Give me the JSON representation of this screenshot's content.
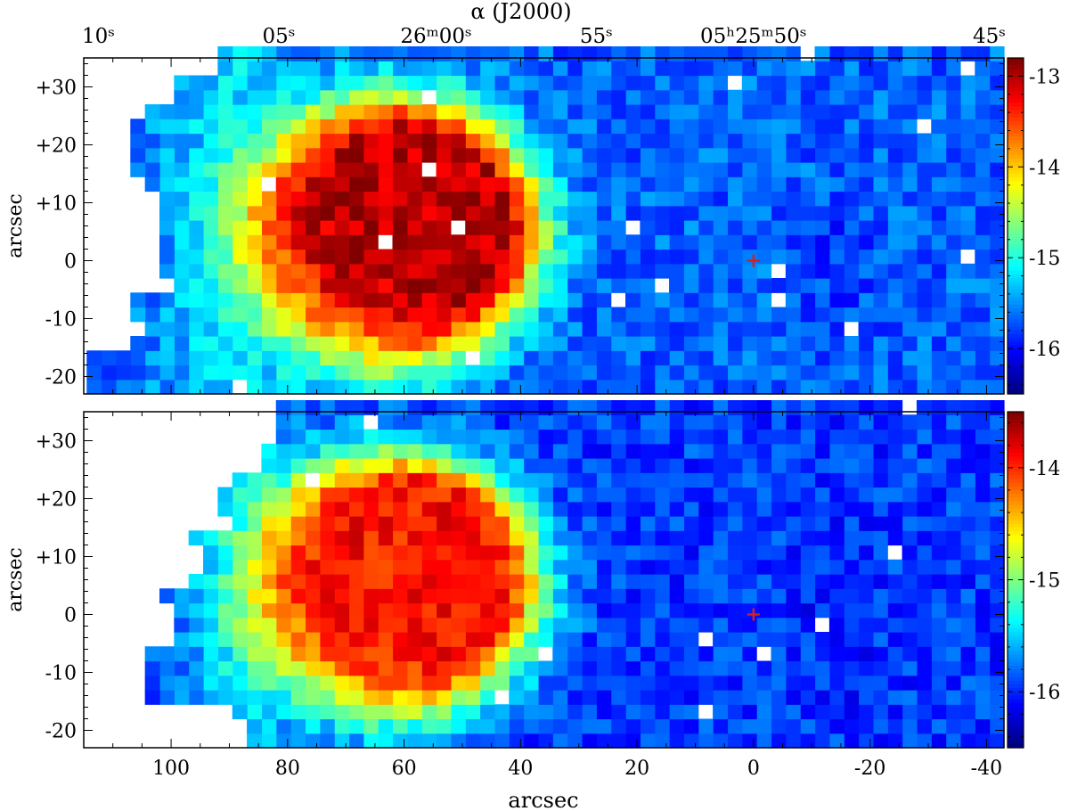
{
  "figure": {
    "top_axis_label": "α (J2000)",
    "bottom_axis_label": "arcsec",
    "top_ticks": [
      {
        "x": 108.5,
        "label": "10ˢ"
      },
      {
        "x": 81.5,
        "label": "05ˢ"
      },
      {
        "x": 54.5,
        "label": "26ᵐ00ˢ"
      },
      {
        "x": 27.0,
        "label": "55ˢ"
      },
      {
        "x": 0.0,
        "label": "05ʰ25ᵐ50ˢ"
      },
      {
        "x": -27.0,
        "label": "45ˢ"
      }
    ],
    "marker_color": "#d32020"
  },
  "chart_data": [
    {
      "type": "heatmap",
      "panel": "top",
      "ylabel": "arcsec",
      "xlim": [
        115,
        -43
      ],
      "ylim": [
        -23,
        35
      ],
      "xticks": [
        100,
        80,
        60,
        40,
        20,
        0,
        -20,
        -40
      ],
      "xtick_labels": [
        "100",
        "80",
        "60",
        "40",
        "20",
        "0",
        "-20",
        "-40"
      ],
      "yticks": [
        30,
        20,
        10,
        0,
        -10,
        -20
      ],
      "ytick_labels": [
        "+30",
        "+20",
        "+10",
        "0",
        "-10",
        "-20"
      ],
      "colorbar": {
        "range": [
          -16.5,
          -12.8
        ],
        "ticks": [
          -13,
          -14,
          -15,
          -16
        ],
        "tick_labels": [
          "-13",
          "-14",
          "-15",
          "-16"
        ]
      },
      "reference_marker": {
        "x": 0,
        "y": 0
      },
      "pixel_size": 2.5
    },
    {
      "type": "heatmap",
      "panel": "bottom",
      "ylabel": "arcsec",
      "xlim": [
        115,
        -43
      ],
      "ylim": [
        -23,
        35
      ],
      "xticks": [
        100,
        80,
        60,
        40,
        20,
        0,
        -20,
        -40
      ],
      "xtick_labels": [
        "100",
        "80",
        "60",
        "40",
        "20",
        "0",
        "-20",
        "-40"
      ],
      "yticks": [
        30,
        20,
        10,
        0,
        -10,
        -20
      ],
      "ytick_labels": [
        "+30",
        "+20",
        "+10",
        "0",
        "-10",
        "-20"
      ],
      "colorbar": {
        "range": [
          -16.5,
          -13.5
        ],
        "ticks": [
          -14,
          -15,
          -16
        ],
        "tick_labels": [
          "-14",
          "-15",
          "-16"
        ]
      },
      "reference_marker": {
        "x": 0,
        "y": 0
      },
      "pixel_size": 2.5
    }
  ]
}
